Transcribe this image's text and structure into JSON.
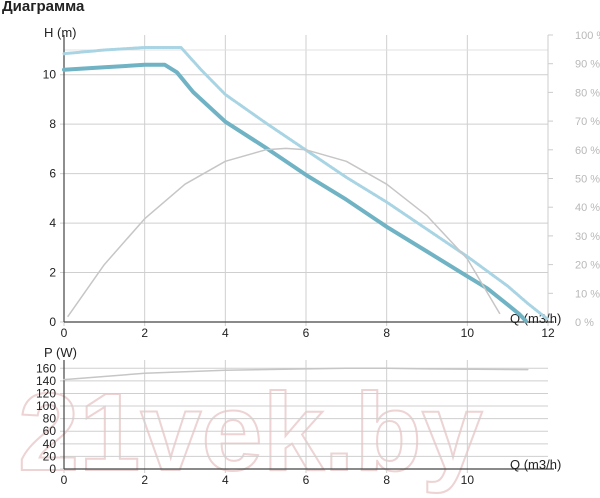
{
  "heading": "Диаграмма",
  "watermark": "21vek.by",
  "chart_data": [
    {
      "type": "line",
      "xlabel": "Q (m3/h)",
      "ylabel": "H (m)",
      "y2label": "%",
      "xlim": [
        0,
        12
      ],
      "ylim": [
        0,
        11
      ],
      "y2lim": [
        0,
        100
      ],
      "x_ticks": [
        "0",
        "2",
        "4",
        "6",
        "8",
        "10",
        "12"
      ],
      "y_ticks": [
        "0",
        "2",
        "4",
        "6",
        "8",
        "10"
      ],
      "y2_ticks": [
        "0 %",
        "10 %",
        "20 %",
        "30 %",
        "40 %",
        "50 %",
        "60 %",
        "70 %",
        "80 %",
        "90 %",
        "100 %"
      ],
      "grid": true,
      "series": [
        {
          "axis": "left",
          "color": "#6fb3c4",
          "style": "thick",
          "points": [
            [
              0,
              10.2
            ],
            [
              1,
              10.3
            ],
            [
              2,
              10.4
            ],
            [
              2.5,
              10.4
            ],
            [
              2.8,
              10.1
            ],
            [
              3.2,
              9.3
            ],
            [
              4,
              8.1
            ],
            [
              5,
              7.05
            ],
            [
              6,
              5.95
            ],
            [
              7,
              4.95
            ],
            [
              8,
              3.85
            ],
            [
              9,
              2.85
            ],
            [
              10,
              1.85
            ],
            [
              10.5,
              1.35
            ],
            [
              11,
              0.7
            ],
            [
              11.3,
              0.3
            ],
            [
              11.45,
              0.05
            ]
          ]
        },
        {
          "axis": "left",
          "color": "#a8d4e4",
          "style": "dotted",
          "points": [
            [
              0,
              10.85
            ],
            [
              1,
              11.0
            ],
            [
              2,
              11.1
            ],
            [
              2.9,
              11.1
            ],
            [
              3.4,
              10.2
            ],
            [
              4,
              9.2
            ],
            [
              5,
              8.05
            ],
            [
              6,
              6.95
            ],
            [
              7,
              5.85
            ],
            [
              8,
              4.85
            ],
            [
              9,
              3.75
            ],
            [
              10,
              2.65
            ],
            [
              11,
              1.45
            ],
            [
              11.5,
              0.75
            ],
            [
              12,
              0.1
            ]
          ]
        },
        {
          "axis": "right",
          "color": "#c6c6c6",
          "style": "thin",
          "points": [
            [
              0.1,
              2
            ],
            [
              1,
              20
            ],
            [
              2,
              36
            ],
            [
              3,
              48
            ],
            [
              4,
              56
            ],
            [
              5,
              60
            ],
            [
              5.5,
              60.5
            ],
            [
              6,
              60
            ],
            [
              7,
              56
            ],
            [
              8,
              48
            ],
            [
              9,
              37
            ],
            [
              10,
              22
            ],
            [
              10.8,
              3
            ]
          ]
        }
      ]
    },
    {
      "type": "line",
      "xlabel": "Q (m3/h)",
      "ylabel": "P (W)",
      "xlim": [
        0,
        12
      ],
      "ylim": [
        0,
        170
      ],
      "x_ticks": [
        "0",
        "2",
        "4",
        "6",
        "8",
        "10"
      ],
      "y_ticks": [
        "0",
        "20",
        "40",
        "60",
        "80",
        "100",
        "120",
        "140",
        "160"
      ],
      "grid": true,
      "series": [
        {
          "axis": "left",
          "color": "#c6c6c6",
          "style": "thin",
          "points": [
            [
              0,
              142
            ],
            [
              2,
              152
            ],
            [
              4,
              157
            ],
            [
              6,
              159
            ],
            [
              7,
              160
            ],
            [
              8,
              160
            ],
            [
              9,
              159
            ],
            [
              11.5,
              158
            ]
          ]
        }
      ]
    }
  ]
}
